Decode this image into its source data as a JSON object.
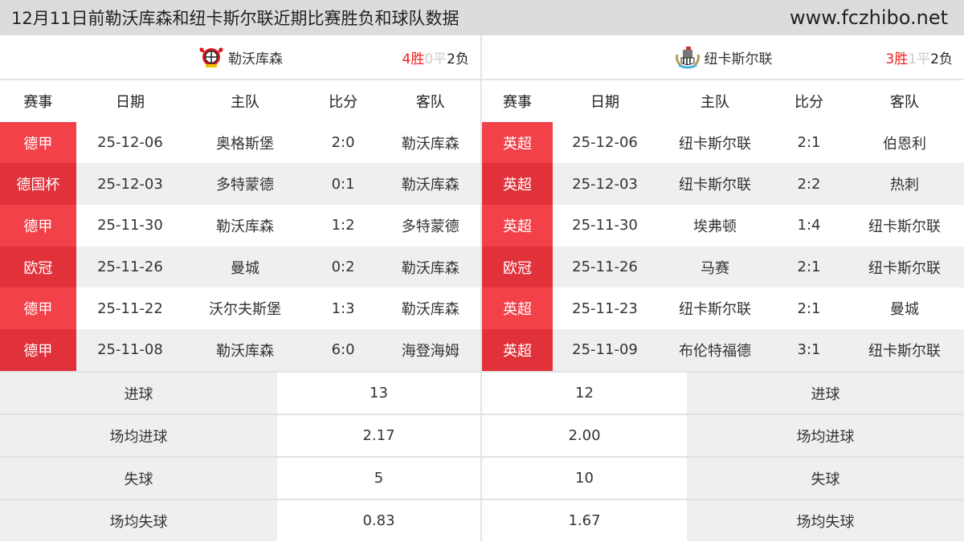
{
  "header": {
    "title": "12月11日前勒沃库森和纽卡斯尔联近期比赛胜负和球队数据",
    "site": "www.fczhibo.net"
  },
  "columns": [
    "赛事",
    "日期",
    "主队",
    "比分",
    "客队"
  ],
  "left": {
    "team": "勒沃库森",
    "wins": "4胜",
    "draws": "0平",
    "losses": "2负",
    "logo_colors": [
      "#d71920",
      "#f5c400"
    ],
    "matches": [
      {
        "comp": "德甲",
        "date": "25-12-06",
        "home": "奥格斯堡",
        "score": "2:0",
        "away": "勒沃库森"
      },
      {
        "comp": "德国杯",
        "date": "25-12-03",
        "home": "多特蒙德",
        "score": "0:1",
        "away": "勒沃库森"
      },
      {
        "comp": "德甲",
        "date": "25-11-30",
        "home": "勒沃库森",
        "score": "1:2",
        "away": "多特蒙德"
      },
      {
        "comp": "欧冠",
        "date": "25-11-26",
        "home": "曼城",
        "score": "0:2",
        "away": "勒沃库森"
      },
      {
        "comp": "德甲",
        "date": "25-11-22",
        "home": "沃尔夫斯堡",
        "score": "1:3",
        "away": "勒沃库森"
      },
      {
        "comp": "德甲",
        "date": "25-11-08",
        "home": "勒沃库森",
        "score": "6:0",
        "away": "海登海姆"
      }
    ]
  },
  "right": {
    "team": "纽卡斯尔联",
    "wins": "3胜",
    "draws": "1平",
    "losses": "2负",
    "logo_colors": [
      "#222222",
      "#4fb3d9"
    ],
    "matches": [
      {
        "comp": "英超",
        "date": "25-12-06",
        "home": "纽卡斯尔联",
        "score": "2:1",
        "away": "伯恩利"
      },
      {
        "comp": "英超",
        "date": "25-12-03",
        "home": "纽卡斯尔联",
        "score": "2:2",
        "away": "热刺"
      },
      {
        "comp": "英超",
        "date": "25-11-30",
        "home": "埃弗顿",
        "score": "1:4",
        "away": "纽卡斯尔联"
      },
      {
        "comp": "欧冠",
        "date": "25-11-26",
        "home": "马赛",
        "score": "2:1",
        "away": "纽卡斯尔联"
      },
      {
        "comp": "英超",
        "date": "25-11-23",
        "home": "纽卡斯尔联",
        "score": "2:1",
        "away": "曼城"
      },
      {
        "comp": "英超",
        "date": "25-11-09",
        "home": "布伦特福德",
        "score": "3:1",
        "away": "纽卡斯尔联"
      }
    ]
  },
  "stats": [
    {
      "label": "进球",
      "left": "13",
      "right": "12"
    },
    {
      "label": "场均进球",
      "left": "2.17",
      "right": "2.00"
    },
    {
      "label": "失球",
      "left": "5",
      "right": "10"
    },
    {
      "label": "场均失球",
      "left": "0.83",
      "right": "1.67"
    }
  ]
}
